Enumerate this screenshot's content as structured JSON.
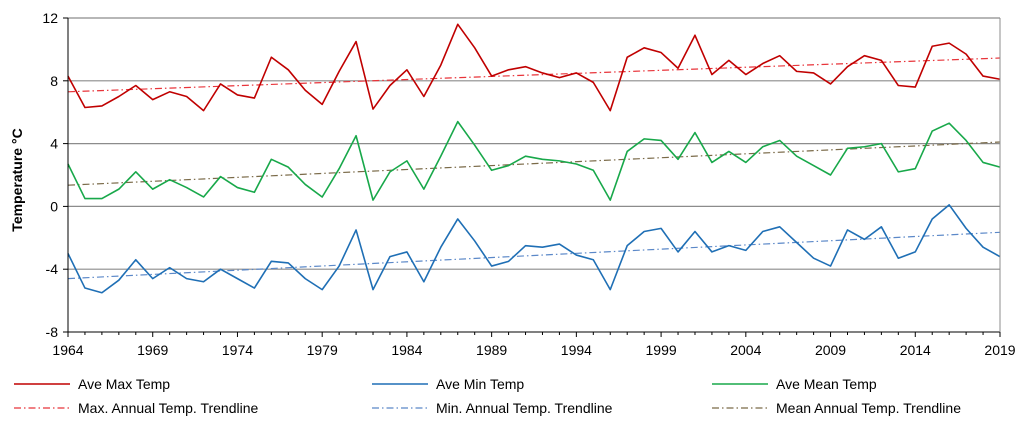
{
  "chart_data": {
    "type": "line",
    "ylabel": "Temperature °C",
    "xlabel": "",
    "xlim": [
      1964,
      2019
    ],
    "ylim": [
      -8,
      12
    ],
    "x_ticks": [
      1964,
      1969,
      1974,
      1979,
      1984,
      1989,
      1994,
      1999,
      2004,
      2009,
      2014,
      2019
    ],
    "y_ticks": [
      -8,
      -4,
      0,
      4,
      8,
      12
    ],
    "gridlines": {
      "horizontal": true,
      "vertical": false
    },
    "legend_position": "bottom",
    "series": [
      {
        "name": "Ave Max Temp",
        "color": "#c00000",
        "style": "solid",
        "values": [
          8.3,
          6.3,
          6.4,
          7.0,
          7.7,
          6.8,
          7.3,
          7.0,
          6.1,
          7.8,
          7.1,
          6.9,
          9.5,
          8.7,
          7.4,
          6.5,
          8.6,
          10.5,
          6.2,
          7.7,
          8.7,
          7.0,
          9.0,
          11.6,
          10.1,
          8.3,
          8.7,
          8.9,
          8.5,
          8.2,
          8.5,
          7.9,
          6.1,
          9.5,
          10.1,
          9.8,
          8.8,
          10.9,
          8.4,
          9.3,
          8.4,
          9.1,
          9.6,
          8.6,
          8.5,
          7.8,
          8.9,
          9.6,
          9.3,
          7.7,
          7.6,
          10.2,
          10.4,
          9.7,
          8.3,
          8.1
        ]
      },
      {
        "name": "Ave Min Temp",
        "color": "#1f6fb5",
        "style": "solid",
        "values": [
          -3.0,
          -5.2,
          -5.5,
          -4.7,
          -3.4,
          -4.6,
          -3.9,
          -4.6,
          -4.8,
          -4.0,
          -4.6,
          -5.2,
          -3.5,
          -3.6,
          -4.6,
          -5.3,
          -3.8,
          -1.5,
          -5.3,
          -3.2,
          -2.9,
          -4.8,
          -2.6,
          -0.8,
          -2.2,
          -3.8,
          -3.5,
          -2.5,
          -2.6,
          -2.4,
          -3.1,
          -3.4,
          -5.3,
          -2.5,
          -1.6,
          -1.4,
          -2.9,
          -1.6,
          -2.9,
          -2.5,
          -2.8,
          -1.6,
          -1.3,
          -2.3,
          -3.3,
          -3.8,
          -1.5,
          -2.1,
          -1.3,
          -3.3,
          -2.9,
          -0.8,
          0.1,
          -1.4,
          -2.6,
          -3.2
        ]
      },
      {
        "name": "Ave Mean Temp",
        "color": "#18a84a",
        "style": "solid",
        "values": [
          2.7,
          0.5,
          0.5,
          1.1,
          2.2,
          1.1,
          1.7,
          1.2,
          0.6,
          1.9,
          1.2,
          0.9,
          3.0,
          2.5,
          1.4,
          0.6,
          2.4,
          4.5,
          0.4,
          2.2,
          2.9,
          1.1,
          3.2,
          5.4,
          3.9,
          2.3,
          2.6,
          3.2,
          3.0,
          2.9,
          2.7,
          2.3,
          0.4,
          3.5,
          4.3,
          4.2,
          3.0,
          4.7,
          2.8,
          3.5,
          2.8,
          3.8,
          4.2,
          3.2,
          2.6,
          2.0,
          3.7,
          3.8,
          4.0,
          2.2,
          2.4,
          4.8,
          5.3,
          4.2,
          2.8,
          2.5
        ]
      },
      {
        "name": "Max. Annual Temp. Trendline",
        "color": "#e8343a",
        "style": "dashdot",
        "trend": [
          7.3,
          9.45
        ]
      },
      {
        "name": "Min. Annual Temp. Trendline",
        "color": "#5b88c8",
        "style": "dashdot",
        "trend": [
          -4.6,
          -1.65
        ]
      },
      {
        "name": "Mean Annual Temp. Trendline",
        "color": "#7a6a48",
        "style": "dashdot",
        "trend": [
          1.35,
          4.1
        ]
      }
    ]
  }
}
